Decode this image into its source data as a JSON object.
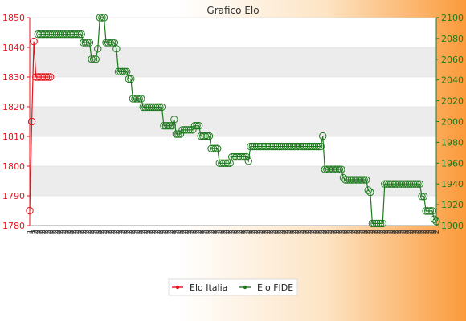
{
  "chart_data": {
    "type": "line",
    "title": "Grafico Elo",
    "ylim_left": [
      1780,
      1850
    ],
    "ylim_right": [
      1900,
      2100
    ],
    "yticks_left": [
      1780,
      1790,
      1800,
      1810,
      1820,
      1830,
      1840,
      1850
    ],
    "yticks_right": [
      1900,
      1920,
      1940,
      1960,
      1980,
      2000,
      2020,
      2040,
      2060,
      2080,
      2100
    ],
    "grid": "horizontal bands",
    "legend_position": "bottom-center",
    "colors": {
      "italia": "#e8141e",
      "fide": "#1f7a1f",
      "left_axis": "#e8141e",
      "right_axis": "#1f7a1f",
      "band": "#ececec"
    },
    "x_labels": [
      "1",
      "1",
      "2",
      "2",
      "2",
      "2",
      "2",
      "2",
      "2",
      "2",
      "2",
      "2",
      "2",
      "2",
      "2",
      "2",
      "2",
      "2",
      "2",
      "2",
      "2",
      "2",
      "2",
      "2",
      "2",
      "2",
      "2",
      "2",
      "2",
      "2",
      "2",
      "2",
      "2",
      "2",
      "2",
      "2",
      "2",
      "2",
      "2",
      "2",
      "2",
      "2",
      "2",
      "2",
      "2",
      "2",
      "2",
      "2",
      "2",
      "2",
      "2",
      "2",
      "2",
      "2",
      "2",
      "2",
      "2",
      "2",
      "2",
      "2",
      "2",
      "2",
      "2",
      "2",
      "2",
      "2",
      "2",
      "2",
      "2",
      "2",
      "2",
      "2",
      "2",
      "2",
      "2",
      "2",
      "2",
      "2",
      "2",
      "2",
      "2",
      "2",
      "2",
      "2",
      "2",
      "2",
      "2",
      "2",
      "2",
      "2",
      "2",
      "2",
      "2",
      "2",
      "2",
      "2",
      "2",
      "2",
      "2",
      "2",
      "2",
      "2",
      "2",
      "2",
      "2",
      "2",
      "2",
      "2",
      "2",
      "2",
      "2",
      "2",
      "2",
      "2",
      "2",
      "2",
      "2",
      "2",
      "2",
      "2",
      "2",
      "2",
      "2",
      "2",
      "2",
      "2",
      "2",
      "2",
      "2",
      "2",
      "2",
      "2",
      "2",
      "2",
      "2",
      "2",
      "2",
      "2",
      "2",
      "2",
      "2",
      "2",
      "2",
      "2",
      "2",
      "2",
      "2",
      "2",
      "2",
      "2",
      "2",
      "2",
      "2",
      "2",
      "2",
      "2",
      "2",
      "2",
      "2",
      "2"
    ],
    "series": [
      {
        "name": "Elo Italia",
        "axis": "left",
        "points": [
          [
            0,
            1785
          ],
          [
            1,
            1815
          ],
          [
            2,
            1842
          ],
          [
            3,
            1830
          ],
          [
            4,
            1830
          ],
          [
            5,
            1830
          ],
          [
            6,
            1830
          ],
          [
            7,
            1830
          ],
          [
            8,
            1830
          ],
          [
            9,
            1830
          ],
          [
            10,
            1830
          ]
        ]
      },
      {
        "name": "Elo FIDE",
        "axis": "right",
        "points": [
          [
            4,
            2084
          ],
          [
            5,
            2084
          ],
          [
            6,
            2084
          ],
          [
            7,
            2084
          ],
          [
            8,
            2084
          ],
          [
            9,
            2084
          ],
          [
            10,
            2084
          ],
          [
            11,
            2084
          ],
          [
            12,
            2084
          ],
          [
            13,
            2084
          ],
          [
            14,
            2084
          ],
          [
            15,
            2084
          ],
          [
            16,
            2084
          ],
          [
            17,
            2084
          ],
          [
            18,
            2084
          ],
          [
            19,
            2084
          ],
          [
            20,
            2084
          ],
          [
            21,
            2084
          ],
          [
            22,
            2084
          ],
          [
            23,
            2084
          ],
          [
            24,
            2084
          ],
          [
            25,
            2084
          ],
          [
            26,
            2076
          ],
          [
            27,
            2076
          ],
          [
            28,
            2076
          ],
          [
            29,
            2076
          ],
          [
            30,
            2060
          ],
          [
            31,
            2060
          ],
          [
            32,
            2060
          ],
          [
            33,
            2070
          ],
          [
            34,
            2100
          ],
          [
            35,
            2100
          ],
          [
            36,
            2100
          ],
          [
            37,
            2076
          ],
          [
            38,
            2076
          ],
          [
            39,
            2076
          ],
          [
            40,
            2076
          ],
          [
            41,
            2076
          ],
          [
            42,
            2070
          ],
          [
            43,
            2048
          ],
          [
            44,
            2048
          ],
          [
            45,
            2048
          ],
          [
            46,
            2048
          ],
          [
            47,
            2048
          ],
          [
            48,
            2041
          ],
          [
            49,
            2041
          ],
          [
            50,
            2022
          ],
          [
            51,
            2022
          ],
          [
            52,
            2022
          ],
          [
            53,
            2022
          ],
          [
            54,
            2022
          ],
          [
            55,
            2014
          ],
          [
            56,
            2014
          ],
          [
            57,
            2014
          ],
          [
            58,
            2014
          ],
          [
            59,
            2014
          ],
          [
            60,
            2014
          ],
          [
            61,
            2014
          ],
          [
            62,
            2014
          ],
          [
            63,
            2014
          ],
          [
            64,
            2014
          ],
          [
            65,
            1996
          ],
          [
            66,
            1996
          ],
          [
            67,
            1996
          ],
          [
            68,
            1996
          ],
          [
            69,
            1996
          ],
          [
            70,
            2002
          ],
          [
            71,
            1988
          ],
          [
            72,
            1988
          ],
          [
            73,
            1988
          ],
          [
            74,
            1992
          ],
          [
            75,
            1992
          ],
          [
            76,
            1992
          ],
          [
            77,
            1992
          ],
          [
            78,
            1992
          ],
          [
            79,
            1992
          ],
          [
            80,
            1996
          ],
          [
            81,
            1996
          ],
          [
            82,
            1996
          ],
          [
            83,
            1986
          ],
          [
            84,
            1986
          ],
          [
            85,
            1986
          ],
          [
            86,
            1986
          ],
          [
            87,
            1986
          ],
          [
            88,
            1974
          ],
          [
            89,
            1974
          ],
          [
            90,
            1974
          ],
          [
            91,
            1974
          ],
          [
            92,
            1960
          ],
          [
            93,
            1960
          ],
          [
            94,
            1960
          ],
          [
            95,
            1960
          ],
          [
            96,
            1960
          ],
          [
            97,
            1960
          ],
          [
            98,
            1966
          ],
          [
            99,
            1966
          ],
          [
            100,
            1966
          ],
          [
            101,
            1966
          ],
          [
            102,
            1966
          ],
          [
            103,
            1966
          ],
          [
            104,
            1966
          ],
          [
            105,
            1966
          ],
          [
            106,
            1962
          ],
          [
            107,
            1976
          ],
          [
            108,
            1976
          ],
          [
            109,
            1976
          ],
          [
            110,
            1976
          ],
          [
            111,
            1976
          ],
          [
            112,
            1976
          ],
          [
            113,
            1976
          ],
          [
            114,
            1976
          ],
          [
            115,
            1976
          ],
          [
            116,
            1976
          ],
          [
            117,
            1976
          ],
          [
            118,
            1976
          ],
          [
            119,
            1976
          ],
          [
            120,
            1976
          ],
          [
            121,
            1976
          ],
          [
            122,
            1976
          ],
          [
            123,
            1976
          ],
          [
            124,
            1976
          ],
          [
            125,
            1976
          ],
          [
            126,
            1976
          ],
          [
            127,
            1976
          ],
          [
            128,
            1976
          ],
          [
            129,
            1976
          ],
          [
            130,
            1976
          ],
          [
            131,
            1976
          ],
          [
            132,
            1976
          ],
          [
            133,
            1976
          ],
          [
            134,
            1976
          ],
          [
            135,
            1976
          ],
          [
            136,
            1976
          ],
          [
            137,
            1976
          ],
          [
            138,
            1976
          ],
          [
            139,
            1976
          ],
          [
            140,
            1976
          ],
          [
            141,
            1976
          ],
          [
            142,
            1986
          ],
          [
            143,
            1954
          ],
          [
            144,
            1954
          ],
          [
            145,
            1954
          ],
          [
            146,
            1954
          ],
          [
            147,
            1954
          ],
          [
            148,
            1954
          ],
          [
            149,
            1954
          ],
          [
            150,
            1954
          ],
          [
            151,
            1954
          ],
          [
            152,
            1946
          ],
          [
            153,
            1944
          ],
          [
            154,
            1944
          ],
          [
            155,
            1944
          ],
          [
            156,
            1944
          ],
          [
            157,
            1944
          ],
          [
            158,
            1944
          ],
          [
            159,
            1944
          ],
          [
            160,
            1944
          ],
          [
            161,
            1944
          ],
          [
            162,
            1944
          ],
          [
            163,
            1944
          ],
          [
            164,
            1934
          ],
          [
            165,
            1932
          ],
          [
            166,
            1902
          ],
          [
            167,
            1902
          ],
          [
            168,
            1902
          ],
          [
            169,
            1902
          ],
          [
            170,
            1902
          ],
          [
            171,
            1902
          ],
          [
            172,
            1940
          ],
          [
            173,
            1940
          ],
          [
            174,
            1940
          ],
          [
            175,
            1940
          ],
          [
            176,
            1940
          ],
          [
            177,
            1940
          ],
          [
            178,
            1940
          ],
          [
            179,
            1940
          ],
          [
            180,
            1940
          ],
          [
            181,
            1940
          ],
          [
            182,
            1940
          ],
          [
            183,
            1940
          ],
          [
            184,
            1940
          ],
          [
            185,
            1940
          ],
          [
            186,
            1940
          ],
          [
            187,
            1940
          ],
          [
            188,
            1940
          ],
          [
            189,
            1940
          ],
          [
            190,
            1928
          ],
          [
            191,
            1928
          ],
          [
            192,
            1914
          ],
          [
            193,
            1914
          ],
          [
            194,
            1914
          ],
          [
            195,
            1914
          ],
          [
            196,
            1906
          ],
          [
            197,
            1904
          ]
        ]
      }
    ]
  }
}
